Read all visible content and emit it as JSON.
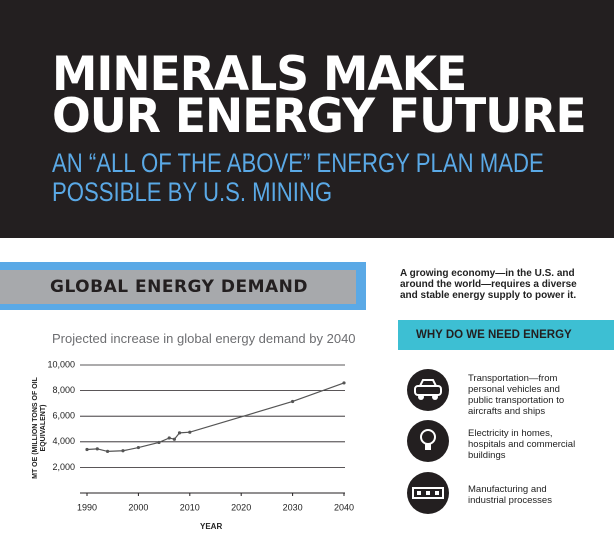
{
  "header": {
    "title": [
      "MINERALS MAKE",
      "OUR ENERGY FUTURE"
    ],
    "subtitle": [
      "AN “ALL OF THE ABOVE” ENERGY PLAN MADE",
      "POSSIBLE BY U.S. MINING"
    ]
  },
  "section": {
    "title": "GLOBAL ENERGY DEMAND"
  },
  "chart_data": {
    "type": "line",
    "title": "Projected increase in global energy demand by 2040",
    "xlabel": "YEAR",
    "ylabel": "MT OE (MILLION TONS OF OIL EQUIVALENT)",
    "x": [
      1990,
      1992,
      1994,
      1997,
      2000,
      2004,
      2006,
      2007,
      2008,
      2010,
      2030,
      2040
    ],
    "values": [
      3400,
      3450,
      3250,
      3300,
      3550,
      3950,
      4300,
      4200,
      4700,
      4750,
      7150,
      8600
    ],
    "color": "#555555",
    "xlim": [
      1990,
      2040
    ],
    "xticks": [
      1990,
      2000,
      2010,
      2020,
      2030,
      2040
    ],
    "ylim": [
      0,
      10000
    ],
    "yticks": [
      {
        "value": 2000,
        "label": "2,000"
      },
      {
        "value": 4000,
        "label": "4,000"
      },
      {
        "value": 6000,
        "label": "6,000"
      },
      {
        "value": 8000,
        "label": "8,000"
      },
      {
        "value": 10000,
        "label": "10,000"
      }
    ],
    "grid": true
  },
  "sidebar": {
    "intro": "A growing economy—in the U.S. and around the world—requires a diverse and stable energy supply to power it.",
    "heading": "WHY DO WE NEED ENERGY",
    "items": [
      "Transportation—from personal vehicles and public transportation to aircrafts and ships",
      "Electricity in homes, hospitals and commercial buildings",
      "Manufacturing and industrial processes"
    ]
  }
}
